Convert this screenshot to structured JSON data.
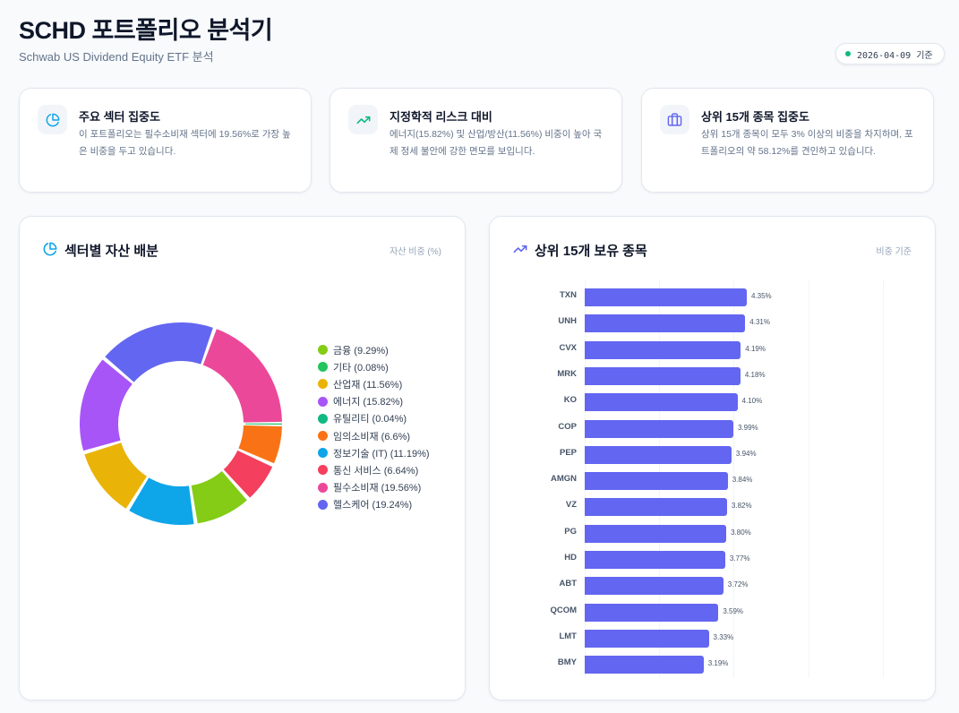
{
  "header": {
    "title": "SCHD 포트폴리오 분석기",
    "subtitle": "Schwab US Dividend Equity ETF 분석",
    "date_badge": "2026-04-09 기준",
    "status_color": "#10b981"
  },
  "info_cards": [
    {
      "icon": "pie-chart-icon",
      "icon_color": "#0ea5e9",
      "title": "주요 섹터 집중도",
      "description": "이 포트폴리오는 필수소비재 섹터에 19.56%로 가장 높은 비중을 두고 있습니다."
    },
    {
      "icon": "trending-up-icon",
      "icon_color": "#10b981",
      "title": "지정학적 리스크 대비",
      "description": "에너지(15.82%) 및 산업/방산(11.56%) 비중이 높아 국제 정세 불안에 강한 면모를 보입니다."
    },
    {
      "icon": "briefcase-icon",
      "icon_color": "#6366f1",
      "title": "상위 15개 종목 집중도",
      "description": "상위 15개 종목이 모두 3% 이상의 비중을 차지하며, 포트폴리오의 약 58.12%를 견인하고 있습니다."
    }
  ],
  "sector_panel": {
    "title": "섹터별 자산 배분",
    "subtitle": "자산 비중 (%)",
    "icon": "pie-chart-icon",
    "legend": [
      {
        "label": "금융 (9.29%)",
        "color": "#84cc16"
      },
      {
        "label": "기타 (0.08%)",
        "color": "#22c55e"
      },
      {
        "label": "산업재 (11.56%)",
        "color": "#eab308"
      },
      {
        "label": "에너지 (15.82%)",
        "color": "#a855f7"
      },
      {
        "label": "유틸리티 (0.04%)",
        "color": "#10b981"
      },
      {
        "label": "임의소비재 (6.6%)",
        "color": "#f97316"
      },
      {
        "label": "정보기술 (IT) (11.19%)",
        "color": "#0ea5e9"
      },
      {
        "label": "통신 서비스 (6.64%)",
        "color": "#f43f5e"
      },
      {
        "label": "필수소비재 (19.56%)",
        "color": "#ec4899"
      },
      {
        "label": "헬스케어 (19.24%)",
        "color": "#6366f1"
      }
    ]
  },
  "holdings_panel": {
    "title": "상위 15개 보유 종목",
    "subtitle": "비중 기준",
    "icon": "trending-up-icon",
    "bar_color": "#6366f1"
  },
  "chart_data": [
    {
      "type": "pie",
      "title": "섹터별 자산 배분",
      "subtitle": "자산 비중 (%)",
      "donut": true,
      "legend_position": "right",
      "categories": [
        "금융",
        "기타",
        "산업재",
        "에너지",
        "유틸리티",
        "임의소비재",
        "정보기술 (IT)",
        "통신 서비스",
        "필수소비재",
        "헬스케어"
      ],
      "values": [
        9.29,
        0.08,
        11.56,
        15.82,
        0.04,
        6.6,
        11.19,
        6.64,
        19.56,
        19.24
      ],
      "colors": [
        "#84cc16",
        "#22c55e",
        "#eab308",
        "#a855f7",
        "#10b981",
        "#f97316",
        "#0ea5e9",
        "#f43f5e",
        "#ec4899",
        "#6366f1"
      ]
    },
    {
      "type": "bar",
      "orientation": "horizontal",
      "title": "상위 15개 보유 종목",
      "subtitle": "비중 기준",
      "categories": [
        "TXN",
        "UNH",
        "CVX",
        "MRK",
        "KO",
        "COP",
        "PEP",
        "AMGN",
        "VZ",
        "PG",
        "HD",
        "ABT",
        "QCOM",
        "LMT",
        "BMY"
      ],
      "values": [
        4.35,
        4.31,
        4.19,
        4.18,
        4.1,
        3.99,
        3.94,
        3.84,
        3.82,
        3.8,
        3.77,
        3.72,
        3.59,
        3.33,
        3.19
      ],
      "value_labels": [
        "4.35%",
        "4.31%",
        "4.19%",
        "4.18%",
        "4.10%",
        "3.99%",
        "3.94%",
        "3.84%",
        "3.82%",
        "3.80%",
        "3.77%",
        "3.72%",
        "3.59%",
        "3.33%",
        "3.19%"
      ],
      "xlim": [
        0,
        8
      ],
      "grid": true,
      "xlabel": "",
      "ylabel": ""
    }
  ]
}
